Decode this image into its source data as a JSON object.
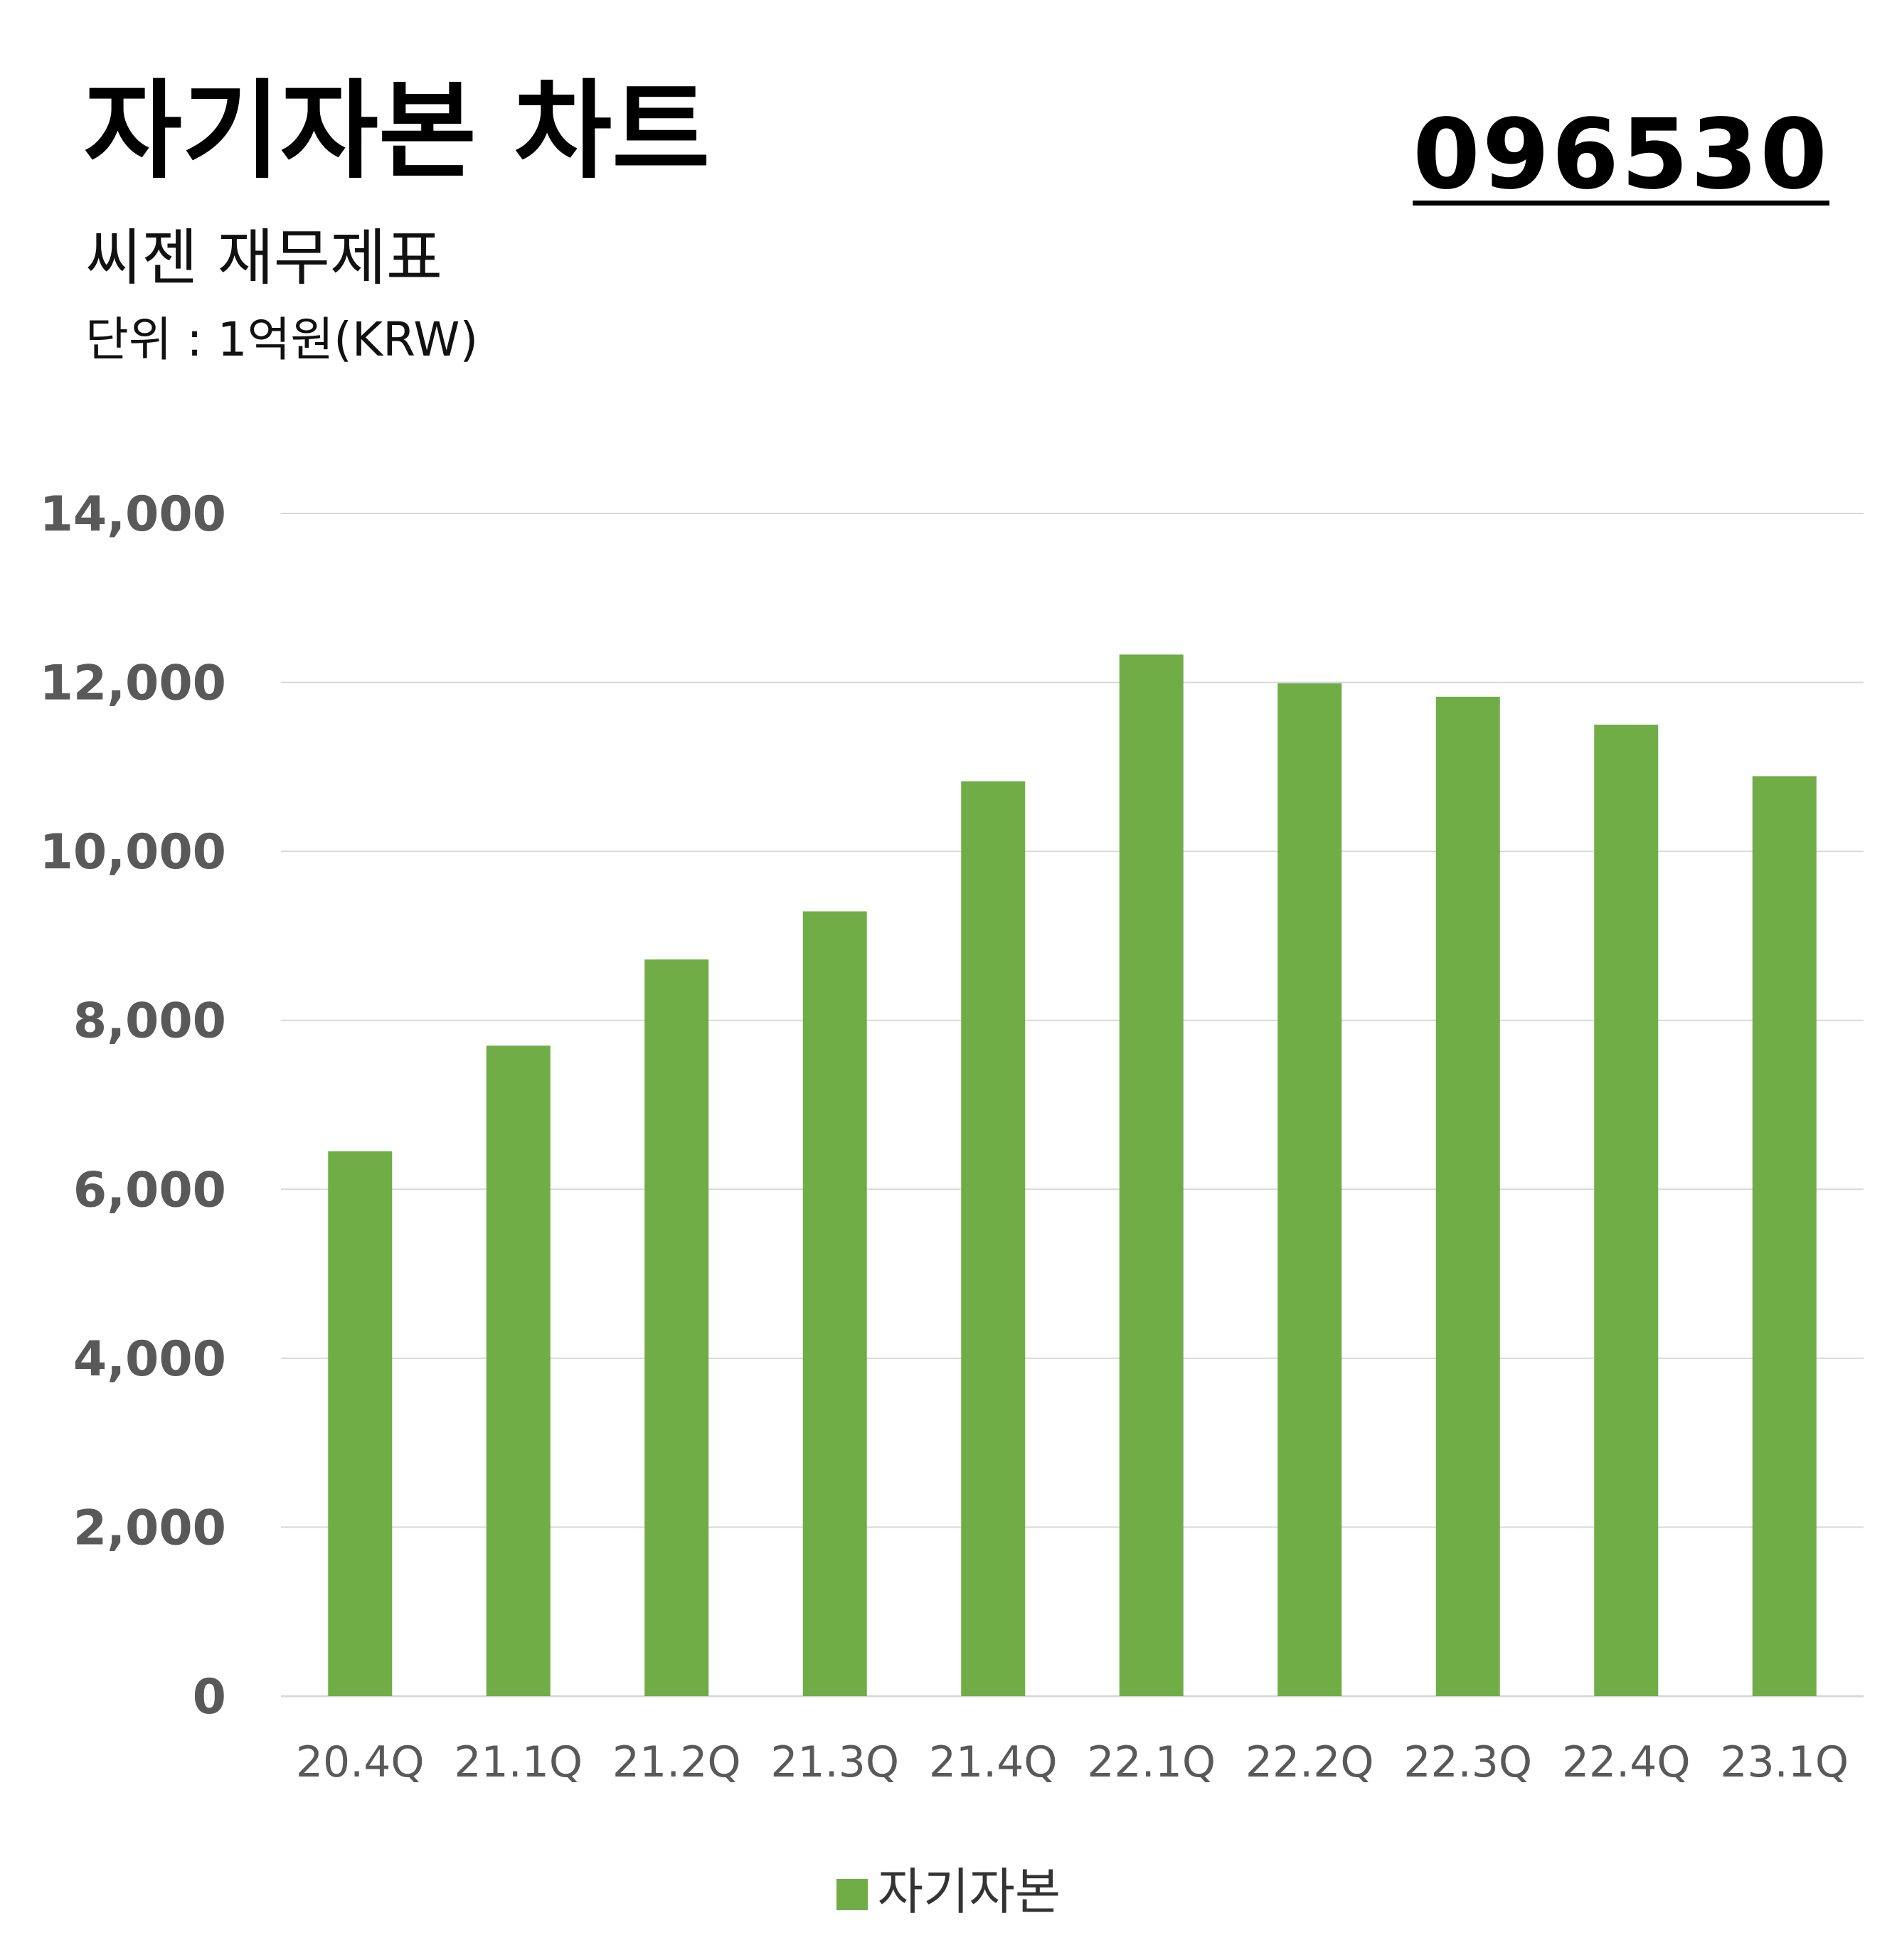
{
  "header": {
    "title": "자기자본 차트",
    "subtitle": "씨젠 재무제표",
    "unit": "단위 : 1억원(KRW)",
    "code": "096530"
  },
  "colors": {
    "bar": "#70ad47",
    "grid": "#d9d9d9",
    "axis_text": "#595959",
    "category_text": "#595959"
  },
  "legend": {
    "label": "자기자본",
    "position": "bottom"
  },
  "chart_data": {
    "type": "bar",
    "title": "자기자본 차트",
    "xlabel": "",
    "ylabel": "",
    "categories": [
      "20.4Q",
      "21.1Q",
      "21.2Q",
      "21.3Q",
      "21.4Q",
      "22.1Q",
      "22.2Q",
      "22.3Q",
      "22.4Q",
      "23.1Q"
    ],
    "series": [
      {
        "name": "자기자본",
        "values": [
          6450,
          7700,
          8720,
          9290,
          10830,
          12330,
          11990,
          11830,
          11500,
          10890
        ]
      }
    ],
    "ylim": [
      0,
      14000
    ],
    "yticks": [
      0,
      2000,
      4000,
      6000,
      8000,
      10000,
      12000,
      14000
    ],
    "ytick_labels": [
      "0",
      "2,000",
      "4,000",
      "6,000",
      "8,000",
      "10,000",
      "12,000",
      "14,000"
    ],
    "grid": true,
    "legend_position": "bottom"
  }
}
